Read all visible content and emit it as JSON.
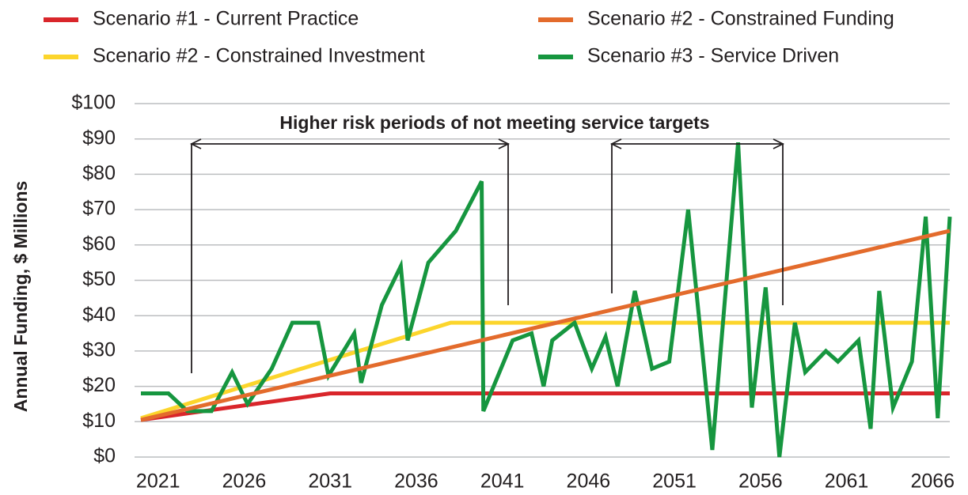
{
  "chart_data": {
    "type": "line",
    "y_label": "Annual Funding, $ Millions",
    "annotation": "Higher risk periods of not meeting service targets",
    "xlim": [
      2020,
      2067
    ],
    "xticks": [
      2021,
      2026,
      2031,
      2036,
      2041,
      2046,
      2051,
      2056,
      2061,
      2066
    ],
    "ylim": [
      0,
      100
    ],
    "yticks": [
      {
        "value": 0,
        "label": "$0"
      },
      {
        "value": 10,
        "label": "$10"
      },
      {
        "value": 20,
        "label": "$20"
      },
      {
        "value": 30,
        "label": "$30"
      },
      {
        "value": 40,
        "label": "$40"
      },
      {
        "value": 50,
        "label": "$50"
      },
      {
        "value": 60,
        "label": "$60"
      },
      {
        "value": 70,
        "label": "$70"
      },
      {
        "value": 80,
        "label": "$80"
      },
      {
        "value": 90,
        "label": "$90"
      },
      {
        "value": 100,
        "label": "$100"
      }
    ],
    "grid": true,
    "series": [
      {
        "name": "Scenario #1 - Current Practice",
        "color": "#d9262b",
        "x": [
          2020,
          2031,
          2067
        ],
        "values": [
          10.5,
          18,
          18
        ]
      },
      {
        "name": "Scenario #2 - Constrained Funding",
        "color": "#e36b2c",
        "x": [
          2020,
          2067
        ],
        "values": [
          10.5,
          64
        ]
      },
      {
        "name": "Scenario #2 - Constrained Investment",
        "color": "#fcd52c",
        "x": [
          2020,
          2038,
          2067
        ],
        "values": [
          11,
          38,
          38
        ]
      },
      {
        "name": "Scenario #3 - Service Driven",
        "color": "#16963f",
        "x": [
          2020,
          2021.6,
          2022.7,
          2024.1,
          2025.3,
          2026.2,
          2027.6,
          2028.8,
          2030.3,
          2030.9,
          2032.4,
          2032.8,
          2034.0,
          2035.1,
          2035.5,
          2036.7,
          2038.3,
          2039.8,
          2039.9,
          2041.6,
          2042.7,
          2043.4,
          2043.9,
          2045.2,
          2046.2,
          2047.0,
          2047.7,
          2048.7,
          2049.7,
          2050.7,
          2051.8,
          2053.2,
          2054.7,
          2055.5,
          2056.3,
          2057.1,
          2058.0,
          2058.6,
          2059.8,
          2060.5,
          2061.7,
          2062.4,
          2062.9,
          2063.7,
          2064.8,
          2065.6,
          2066.3,
          2067
        ],
        "values": [
          18,
          18,
          13,
          13,
          24,
          15,
          25,
          38,
          38,
          23,
          35,
          21,
          43,
          54,
          33,
          55,
          64,
          78,
          13,
          33,
          35,
          20,
          33,
          38,
          25,
          34,
          20,
          47,
          25,
          27,
          70,
          2,
          89,
          14,
          48,
          0,
          38,
          24,
          30,
          27,
          33,
          8,
          47,
          14,
          27,
          68,
          11,
          68
        ]
      }
    ]
  }
}
